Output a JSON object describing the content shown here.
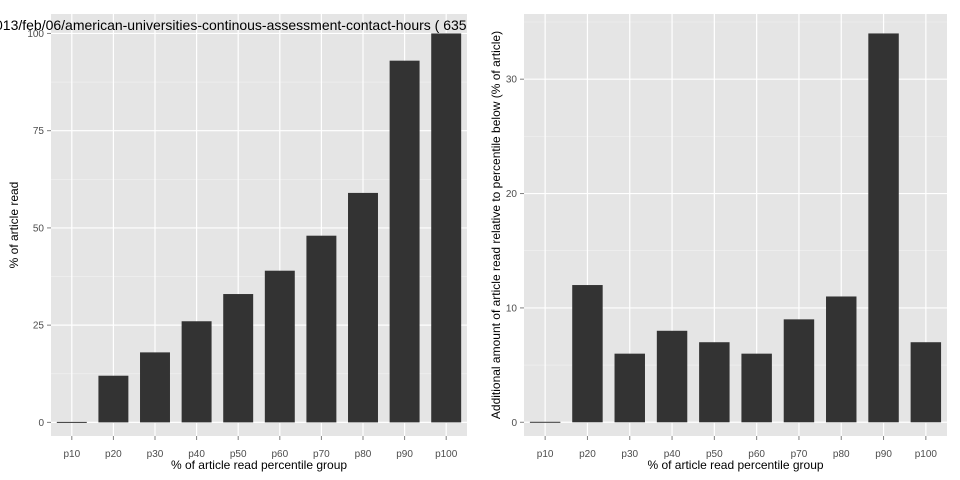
{
  "chart_data": [
    {
      "type": "bar",
      "title": "013/feb/06/american-universities-continous-assessment-contact-hours ( 635",
      "xlabel": "% of article read percentile group",
      "ylabel": "% of article read",
      "categories": [
        "p10",
        "p20",
        "p30",
        "p40",
        "p50",
        "p60",
        "p70",
        "p80",
        "p90",
        "p100"
      ],
      "values": [
        0,
        12,
        18,
        26,
        33,
        39,
        48,
        59,
        93,
        100
      ],
      "ylim": [
        -3.5,
        105
      ],
      "yticks": [
        "0",
        "25",
        "50",
        "75",
        "100"
      ],
      "grid": true
    },
    {
      "type": "bar",
      "title": "",
      "xlabel": "% of article read percentile group",
      "ylabel": "Additional amount of article read relative to percentile below (% of article)",
      "categories": [
        "p10",
        "p20",
        "p30",
        "p40",
        "p50",
        "p60",
        "p70",
        "p80",
        "p90",
        "p100"
      ],
      "values": [
        0,
        12,
        6,
        8,
        7,
        6,
        9,
        11,
        34,
        7
      ],
      "ylim": [
        -1.2,
        35.7
      ],
      "yticks": [
        "0",
        "10",
        "20",
        "30"
      ],
      "grid": true
    }
  ]
}
